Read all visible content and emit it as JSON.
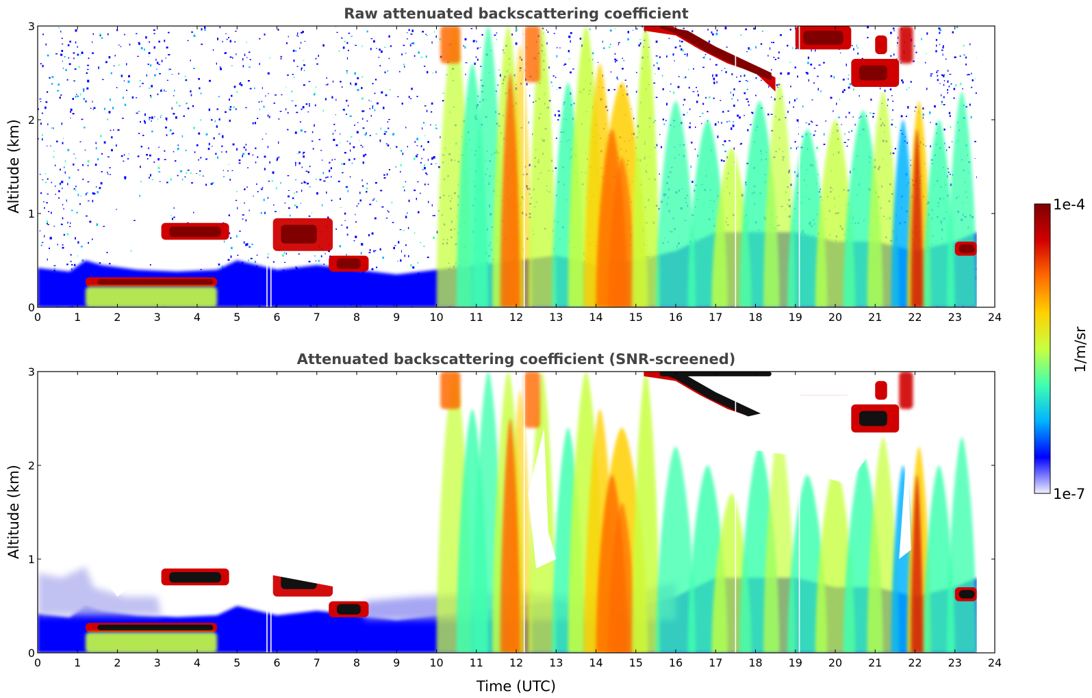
{
  "chart_data": [
    {
      "type": "heatmap",
      "title": "Raw attenuated backscattering coefficient",
      "xlabel": "",
      "ylabel": "Altitude (km)",
      "xlim": [
        0,
        24
      ],
      "ylim": [
        0,
        3
      ],
      "xticks": [
        "0",
        "1",
        "2",
        "3",
        "4",
        "5",
        "6",
        "7",
        "8",
        "9",
        "10",
        "11",
        "12",
        "13",
        "14",
        "15",
        "16",
        "17",
        "18",
        "19",
        "20",
        "21",
        "22",
        "23",
        "24"
      ],
      "yticks": [
        "0",
        "1",
        "2",
        "3"
      ],
      "screened": false,
      "data_end_hour": 23.55,
      "gaps_hours": [
        5.75,
        5.85,
        12.2,
        17.5,
        19.1
      ],
      "features": [
        {
          "kind": "boundary_layer",
          "x": [
            0,
            23.55
          ],
          "top_km": [
            0.35,
            0.35
          ]
        },
        {
          "kind": "cloud",
          "x": [
            1.2,
            4.5
          ],
          "base_km": 0.22,
          "top_km": 0.32
        },
        {
          "kind": "cloud",
          "x": [
            3.1,
            4.8
          ],
          "base_km": 0.72,
          "top_km": 0.9
        },
        {
          "kind": "cloud",
          "x": [
            5.9,
            7.4
          ],
          "base_km": 0.6,
          "top_km": 0.95
        },
        {
          "kind": "cloud",
          "x": [
            7.3,
            8.3
          ],
          "base_km": 0.38,
          "top_km": 0.55
        },
        {
          "kind": "cloud",
          "x": [
            15.2,
            18.5
          ],
          "base_km": 2.3,
          "top_km": 3.0
        },
        {
          "kind": "cloud",
          "x": [
            19.0,
            20.4
          ],
          "base_km": 2.75,
          "top_km": 3.0
        },
        {
          "kind": "cloud",
          "x": [
            20.4,
            21.6
          ],
          "base_km": 2.35,
          "top_km": 2.65
        },
        {
          "kind": "cloud",
          "x": [
            23.0,
            23.55
          ],
          "base_km": 0.55,
          "top_km": 0.7
        },
        {
          "kind": "aerosol_plume",
          "x": [
            10.0,
            23.55
          ],
          "top_km": 3.0
        }
      ]
    },
    {
      "type": "heatmap",
      "title": "Attenuated backscattering coefficient (SNR-screened)",
      "xlabel": "Time (UTC)",
      "ylabel": "Altitude (km)",
      "xlim": [
        0,
        24
      ],
      "ylim": [
        0,
        3
      ],
      "xticks": [
        "0",
        "1",
        "2",
        "3",
        "4",
        "5",
        "6",
        "7",
        "8",
        "9",
        "10",
        "11",
        "12",
        "13",
        "14",
        "15",
        "16",
        "17",
        "18",
        "19",
        "20",
        "21",
        "22",
        "23",
        "24"
      ],
      "yticks": [
        "0",
        "1",
        "2",
        "3"
      ],
      "screened": true,
      "data_end_hour": 23.55,
      "gaps_hours": [
        5.75,
        5.85,
        12.2,
        17.5,
        19.1
      ]
    }
  ],
  "colorbar": {
    "label": "1/m/sr",
    "max_label": "1e-4",
    "min_label": "1e-7",
    "range": [
      1e-07,
      0.0001
    ],
    "scale": "log",
    "colormap": "jet",
    "colors": [
      "#f0f0ff",
      "#0000ff",
      "#00b4ff",
      "#40ffb0",
      "#c8ff40",
      "#ffd000",
      "#ff6a00",
      "#d00000",
      "#800000"
    ]
  }
}
